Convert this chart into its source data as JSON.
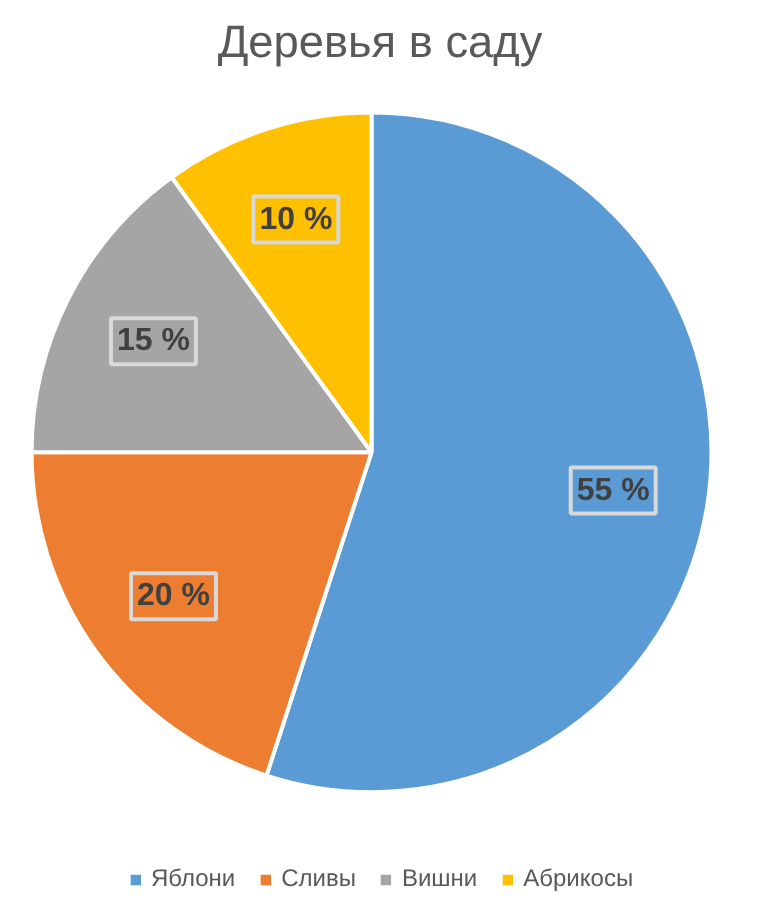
{
  "chart_data": {
    "type": "pie",
    "title": "Деревья в саду",
    "categories": [
      "Яблони",
      "Сливы",
      "Вишни",
      "Абрикосы"
    ],
    "values": [
      55,
      20,
      15,
      10
    ],
    "colors": [
      "#5b9bd5",
      "#ed7d31",
      "#a5a5a5",
      "#ffc000"
    ],
    "value_labels": [
      "55 %",
      "20 %",
      "15 %",
      "10 %"
    ],
    "legend": "bottom"
  }
}
